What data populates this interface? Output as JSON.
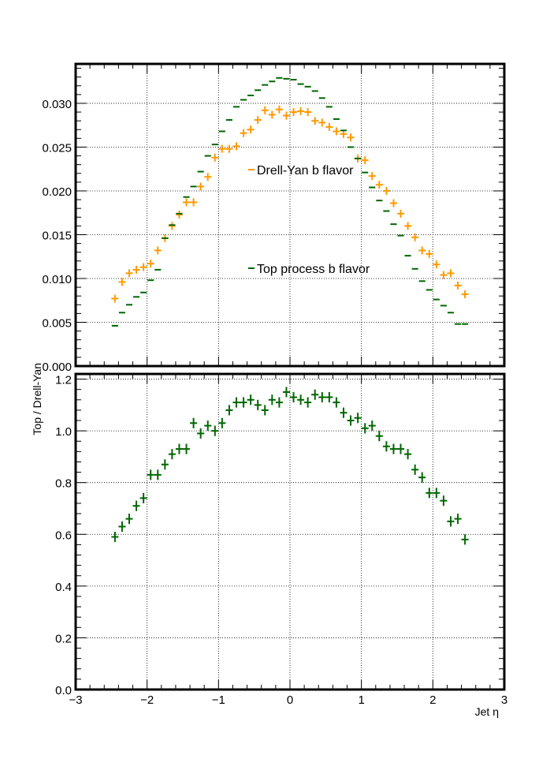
{
  "chart_data": [
    {
      "type": "scatter",
      "panel": "top",
      "title": "",
      "xlabel": "",
      "ylabel": "",
      "xlim": [
        -3,
        3
      ],
      "ylim": [
        0,
        0.0345
      ],
      "grid": true,
      "legend": "center",
      "y_tick_labels": [
        "0.000",
        "0.005",
        "0.010",
        "0.015",
        "0.020",
        "0.025",
        "0.030"
      ],
      "y_ticks": [
        0,
        0.005,
        0.01,
        0.015,
        0.02,
        0.025,
        0.03
      ],
      "bin_width": 0.1,
      "x": [
        -2.45,
        -2.35,
        -2.25,
        -2.15,
        -2.05,
        -1.95,
        -1.85,
        -1.75,
        -1.65,
        -1.55,
        -1.45,
        -1.35,
        -1.25,
        -1.15,
        -1.05,
        -0.95,
        -0.85,
        -0.75,
        -0.65,
        -0.55,
        -0.45,
        -0.35,
        -0.25,
        -0.15,
        -0.05,
        0.05,
        0.15,
        0.25,
        0.35,
        0.45,
        0.55,
        0.65,
        0.75,
        0.85,
        0.95,
        1.05,
        1.15,
        1.25,
        1.35,
        1.45,
        1.55,
        1.65,
        1.75,
        1.85,
        1.95,
        2.05,
        2.15,
        2.25,
        2.35,
        2.45
      ],
      "series": [
        {
          "name": "Drell-Yan b flavor",
          "color": "#ff9900",
          "marker": "cross",
          "values": [
            0.0077,
            0.0096,
            0.0106,
            0.011,
            0.0113,
            0.0117,
            0.0132,
            0.0146,
            0.016,
            0.0173,
            0.0187,
            0.0187,
            0.0205,
            0.0216,
            0.0238,
            0.0248,
            0.0248,
            0.0251,
            0.0266,
            0.027,
            0.0281,
            0.0292,
            0.0287,
            0.0293,
            0.0286,
            0.029,
            0.0291,
            0.029,
            0.028,
            0.0278,
            0.0273,
            0.0268,
            0.0265,
            0.0261,
            0.0237,
            0.0235,
            0.0217,
            0.0207,
            0.02,
            0.0186,
            0.0174,
            0.016,
            0.0147,
            0.0132,
            0.0128,
            0.0116,
            0.0104,
            0.0106,
            0.0092,
            0.0082
          ],
          "errors": [
            0.0002,
            0.0002,
            0.0002,
            0.0002,
            0.0002,
            0.0002,
            0.0002,
            0.0002,
            0.0002,
            0.0002,
            0.0003,
            0.0003,
            0.0003,
            0.0003,
            0.0003,
            0.0003,
            0.0003,
            0.0003,
            0.0003,
            0.0003,
            0.0003,
            0.0003,
            0.0003,
            0.0003,
            0.0003,
            0.0003,
            0.0003,
            0.0003,
            0.0003,
            0.0003,
            0.0003,
            0.0003,
            0.0003,
            0.0003,
            0.0003,
            0.0003,
            0.0003,
            0.0003,
            0.0003,
            0.0002,
            0.0002,
            0.0002,
            0.0002,
            0.0002,
            0.0002,
            0.0002,
            0.0002,
            0.0002,
            0.0002,
            0.0002
          ]
        },
        {
          "name": "Top process b flavor",
          "color": "#006600",
          "marker": "dash",
          "values": [
            0.0046,
            0.0061,
            0.007,
            0.0079,
            0.0084,
            0.0098,
            0.011,
            0.0146,
            0.0161,
            0.0174,
            0.0193,
            0.0205,
            0.0222,
            0.024,
            0.0253,
            0.0268,
            0.0281,
            0.0296,
            0.0304,
            0.0309,
            0.0315,
            0.0321,
            0.0325,
            0.0329,
            0.0328,
            0.0327,
            0.0322,
            0.0319,
            0.0314,
            0.0306,
            0.0296,
            0.0282,
            0.0269,
            0.025,
            0.0237,
            0.0221,
            0.0204,
            0.0189,
            0.0177,
            0.0162,
            0.0149,
            0.0126,
            0.0111,
            0.0097,
            0.0087,
            0.0076,
            0.0069,
            0.0061,
            0.0048,
            0.0048
          ],
          "errors": [
            0,
            0,
            0,
            0,
            0,
            0,
            0,
            0,
            0,
            0,
            0,
            0,
            0,
            0,
            0,
            0,
            0,
            0,
            0,
            0,
            0,
            0,
            0,
            0,
            0,
            0,
            0,
            0,
            0,
            0,
            0,
            0,
            0,
            0,
            0,
            0,
            0,
            0,
            0,
            0,
            0,
            0,
            0,
            0,
            0,
            0,
            0,
            0,
            0,
            0
          ]
        }
      ]
    },
    {
      "type": "scatter",
      "panel": "bottom",
      "title": "",
      "xlabel": "Jet η",
      "ylabel": "Top / Drell-Yan",
      "xlim": [
        -3,
        3
      ],
      "ylim": [
        0,
        1.22
      ],
      "grid": true,
      "x_tick_labels": [
        "−3",
        "−2",
        "−1",
        "0",
        "1",
        "2",
        "3"
      ],
      "x_ticks": [
        -3,
        -2,
        -1,
        0,
        1,
        2,
        3
      ],
      "y_tick_labels": [
        "0.0",
        "0.2",
        "0.4",
        "0.6",
        "0.8",
        "1.0",
        "1.2"
      ],
      "y_ticks": [
        0,
        0.2,
        0.4,
        0.6,
        0.8,
        1.0,
        1.2
      ],
      "bin_width": 0.1,
      "x": [
        -2.45,
        -2.35,
        -2.25,
        -2.15,
        -2.05,
        -1.95,
        -1.85,
        -1.75,
        -1.65,
        -1.55,
        -1.45,
        -1.35,
        -1.25,
        -1.15,
        -1.05,
        -0.95,
        -0.85,
        -0.75,
        -0.65,
        -0.55,
        -0.45,
        -0.35,
        -0.25,
        -0.15,
        -0.05,
        0.05,
        0.15,
        0.25,
        0.35,
        0.45,
        0.55,
        0.65,
        0.75,
        0.85,
        0.95,
        1.05,
        1.15,
        1.25,
        1.35,
        1.45,
        1.55,
        1.65,
        1.75,
        1.85,
        1.95,
        2.05,
        2.15,
        2.25,
        2.35,
        2.45
      ],
      "series": [
        {
          "name": "Top / Drell-Yan",
          "color": "#006600",
          "marker": "cross",
          "values": [
            0.59,
            0.63,
            0.66,
            0.71,
            0.74,
            0.83,
            0.83,
            0.87,
            0.91,
            0.93,
            0.93,
            1.03,
            0.99,
            1.02,
            1.0,
            1.03,
            1.08,
            1.11,
            1.11,
            1.12,
            1.1,
            1.08,
            1.12,
            1.11,
            1.15,
            1.13,
            1.12,
            1.11,
            1.14,
            1.13,
            1.13,
            1.11,
            1.07,
            1.04,
            1.05,
            1.01,
            1.02,
            0.98,
            0.94,
            0.93,
            0.93,
            0.91,
            0.85,
            0.82,
            0.76,
            0.76,
            0.73,
            0.65,
            0.66,
            0.58
          ],
          "errors": [
            0.02,
            0.02,
            0.02,
            0.02,
            0.02,
            0.02,
            0.02,
            0.02,
            0.02,
            0.02,
            0.02,
            0.02,
            0.02,
            0.02,
            0.02,
            0.02,
            0.02,
            0.02,
            0.02,
            0.02,
            0.02,
            0.02,
            0.02,
            0.02,
            0.02,
            0.02,
            0.02,
            0.02,
            0.02,
            0.02,
            0.02,
            0.02,
            0.02,
            0.02,
            0.02,
            0.02,
            0.02,
            0.02,
            0.02,
            0.02,
            0.02,
            0.02,
            0.02,
            0.02,
            0.02,
            0.02,
            0.02,
            0.02,
            0.02,
            0.02
          ]
        }
      ]
    }
  ]
}
